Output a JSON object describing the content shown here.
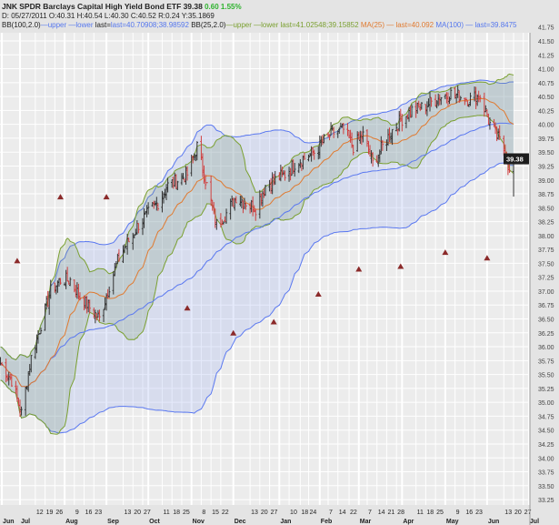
{
  "header": {
    "symbol": "JNK",
    "name": "SPDR Barclays Capital High Yield Bond ETF",
    "last": "39.38",
    "change": "0.60",
    "change_pct": "1.55%",
    "ohlc": {
      "d": "05/27/2011",
      "o": "40.31",
      "h": "40.54",
      "l": "40.30",
      "c": "40.52",
      "r": "0.24",
      "y": "35.1869"
    },
    "bb100": {
      "label": "BB(100,2.0)",
      "upper": "upper",
      "lower": "lower",
      "last": "last=40.70908;38.98592"
    },
    "bb25": {
      "label": "BB(25,2.0)",
      "upper": "upper",
      "lower": "lower",
      "last": "last=41.02548;39.15852"
    },
    "ma25": {
      "label": "MA(25)",
      "last": "last=40.092"
    },
    "ma100": {
      "label": "MA(100)",
      "last": "last=39.8475"
    }
  },
  "chart_data": {
    "type": "candlestick",
    "title": "JNK SPDR Barclays Capital High Yield Bond ETF",
    "ylim": [
      33.25,
      41.75
    ],
    "y_ticks": [
      "41.75",
      "41.50",
      "41.25",
      "41.00",
      "40.75",
      "40.50",
      "40.25",
      "40.00",
      "39.75",
      "39.50",
      "39.25",
      "39.00",
      "38.75",
      "38.50",
      "38.25",
      "38.00",
      "37.75",
      "37.50",
      "37.25",
      "37.00",
      "36.75",
      "36.50",
      "36.25",
      "36.00",
      "35.75",
      "35.50",
      "35.25",
      "35.00",
      "34.75",
      "34.50",
      "34.25",
      "34.00",
      "33.75",
      "33.50",
      "33.25"
    ],
    "x_ticks": [
      [
        "2010-06-18",
        "Jun"
      ],
      [
        "2010-07-01",
        "Jul"
      ],
      [
        "2010-07-12",
        "12"
      ],
      [
        "2010-07-19",
        "19"
      ],
      [
        "2010-07-26",
        "26"
      ],
      [
        "2010-08-02",
        "Aug"
      ],
      [
        "2010-08-09",
        "9"
      ],
      [
        "2010-08-16",
        "16"
      ],
      [
        "2010-08-23",
        "23"
      ],
      [
        "2010-09-01",
        "Sep"
      ],
      [
        "2010-09-13",
        "13"
      ],
      [
        "2010-09-20",
        "20"
      ],
      [
        "2010-09-27",
        "27"
      ],
      [
        "2010-10-01",
        "Oct"
      ],
      [
        "2010-10-11",
        "11"
      ],
      [
        "2010-10-18",
        "18"
      ],
      [
        "2010-10-25",
        "25"
      ],
      [
        "2010-11-01",
        "Nov"
      ],
      [
        "2010-11-08",
        "8"
      ],
      [
        "2010-11-15",
        "15"
      ],
      [
        "2010-11-22",
        "22"
      ],
      [
        "2010-12-01",
        "Dec"
      ],
      [
        "2010-12-13",
        "13"
      ],
      [
        "2010-12-20",
        "20"
      ],
      [
        "2010-12-27",
        "27"
      ],
      [
        "2011-01-03",
        "Jan"
      ],
      [
        "2011-01-10",
        "10"
      ],
      [
        "2011-01-18",
        "18"
      ],
      [
        "2011-01-24",
        "24"
      ],
      [
        "2011-02-01",
        "Feb"
      ],
      [
        "2011-02-07",
        "7"
      ],
      [
        "2011-02-14",
        "14"
      ],
      [
        "2011-02-22",
        "22"
      ],
      [
        "2011-03-01",
        "Mar"
      ],
      [
        "2011-03-07",
        "7"
      ],
      [
        "2011-03-14",
        "14"
      ],
      [
        "2011-03-21",
        "21"
      ],
      [
        "2011-03-28",
        "28"
      ],
      [
        "2011-04-01",
        "Apr"
      ],
      [
        "2011-04-11",
        "11"
      ],
      [
        "2011-04-18",
        "18"
      ],
      [
        "2011-04-25",
        "25"
      ],
      [
        "2011-05-02",
        "May"
      ],
      [
        "2011-05-09",
        "9"
      ],
      [
        "2011-05-16",
        "16"
      ],
      [
        "2011-05-23",
        "23"
      ],
      [
        "2011-06-01",
        "Jun"
      ],
      [
        "2011-06-13",
        "13"
      ],
      [
        "2011-06-20",
        "20"
      ],
      [
        "2011-06-27",
        "27"
      ],
      [
        "2011-07-01",
        "Jul"
      ]
    ],
    "anchors": [
      [
        "2010-06-17",
        35.7
      ],
      [
        "2010-06-25",
        35.4
      ],
      [
        "2010-07-02",
        34.8
      ],
      [
        "2010-07-09",
        35.8
      ],
      [
        "2010-07-16",
        36.4
      ],
      [
        "2010-07-23",
        37.0
      ],
      [
        "2010-07-30",
        37.2
      ],
      [
        "2010-08-06",
        37.2
      ],
      [
        "2010-08-13",
        36.9
      ],
      [
        "2010-08-20",
        36.7
      ],
      [
        "2010-08-27",
        36.5
      ],
      [
        "2010-09-03",
        37.1
      ],
      [
        "2010-09-10",
        37.6
      ],
      [
        "2010-09-17",
        37.9
      ],
      [
        "2010-09-24",
        38.2
      ],
      [
        "2010-10-01",
        38.4
      ],
      [
        "2010-10-08",
        38.6
      ],
      [
        "2010-10-15",
        38.9
      ],
      [
        "2010-10-22",
        39.0
      ],
      [
        "2010-10-29",
        39.1
      ],
      [
        "2010-11-05",
        39.6
      ],
      [
        "2010-11-12",
        38.9
      ],
      [
        "2010-11-19",
        38.2
      ],
      [
        "2010-11-26",
        38.4
      ],
      [
        "2010-12-03",
        38.7
      ],
      [
        "2010-12-10",
        38.6
      ],
      [
        "2010-12-17",
        38.5
      ],
      [
        "2010-12-24",
        38.9
      ],
      [
        "2010-12-31",
        39.0
      ],
      [
        "2011-01-07",
        39.1
      ],
      [
        "2011-01-14",
        39.3
      ],
      [
        "2011-01-21",
        39.4
      ],
      [
        "2011-01-28",
        39.5
      ],
      [
        "2011-02-04",
        39.7
      ],
      [
        "2011-02-11",
        39.85
      ],
      [
        "2011-02-18",
        39.9
      ],
      [
        "2011-02-25",
        39.6
      ],
      [
        "2011-03-04",
        39.8
      ],
      [
        "2011-03-11",
        39.3
      ],
      [
        "2011-03-18",
        39.6
      ],
      [
        "2011-03-25",
        39.9
      ],
      [
        "2011-04-01",
        40.1
      ],
      [
        "2011-04-08",
        40.25
      ],
      [
        "2011-04-15",
        40.3
      ],
      [
        "2011-04-22",
        40.4
      ],
      [
        "2011-04-29",
        40.5
      ],
      [
        "2011-05-06",
        40.55
      ],
      [
        "2011-05-13",
        40.5
      ],
      [
        "2011-05-20",
        40.45
      ],
      [
        "2011-05-27",
        40.52
      ],
      [
        "2011-06-03",
        40.0
      ],
      [
        "2011-06-10",
        39.7
      ],
      [
        "2011-06-15",
        39.45
      ],
      [
        "2011-06-17",
        39.1
      ],
      [
        "2011-06-20",
        39.38
      ]
    ],
    "dividends": [
      [
        "2010-06-29",
        37.55
      ],
      [
        "2010-07-30",
        38.7
      ],
      [
        "2010-09-01",
        38.7
      ],
      [
        "2010-10-29",
        36.7
      ],
      [
        "2010-12-01",
        36.25
      ],
      [
        "2010-12-30",
        36.45
      ],
      [
        "2011-01-31",
        36.95
      ],
      [
        "2011-03-01",
        37.4
      ],
      [
        "2011-03-31",
        37.45
      ],
      [
        "2011-05-02",
        37.7
      ],
      [
        "2011-06-01",
        37.6
      ]
    ],
    "last_label": "39.38"
  }
}
